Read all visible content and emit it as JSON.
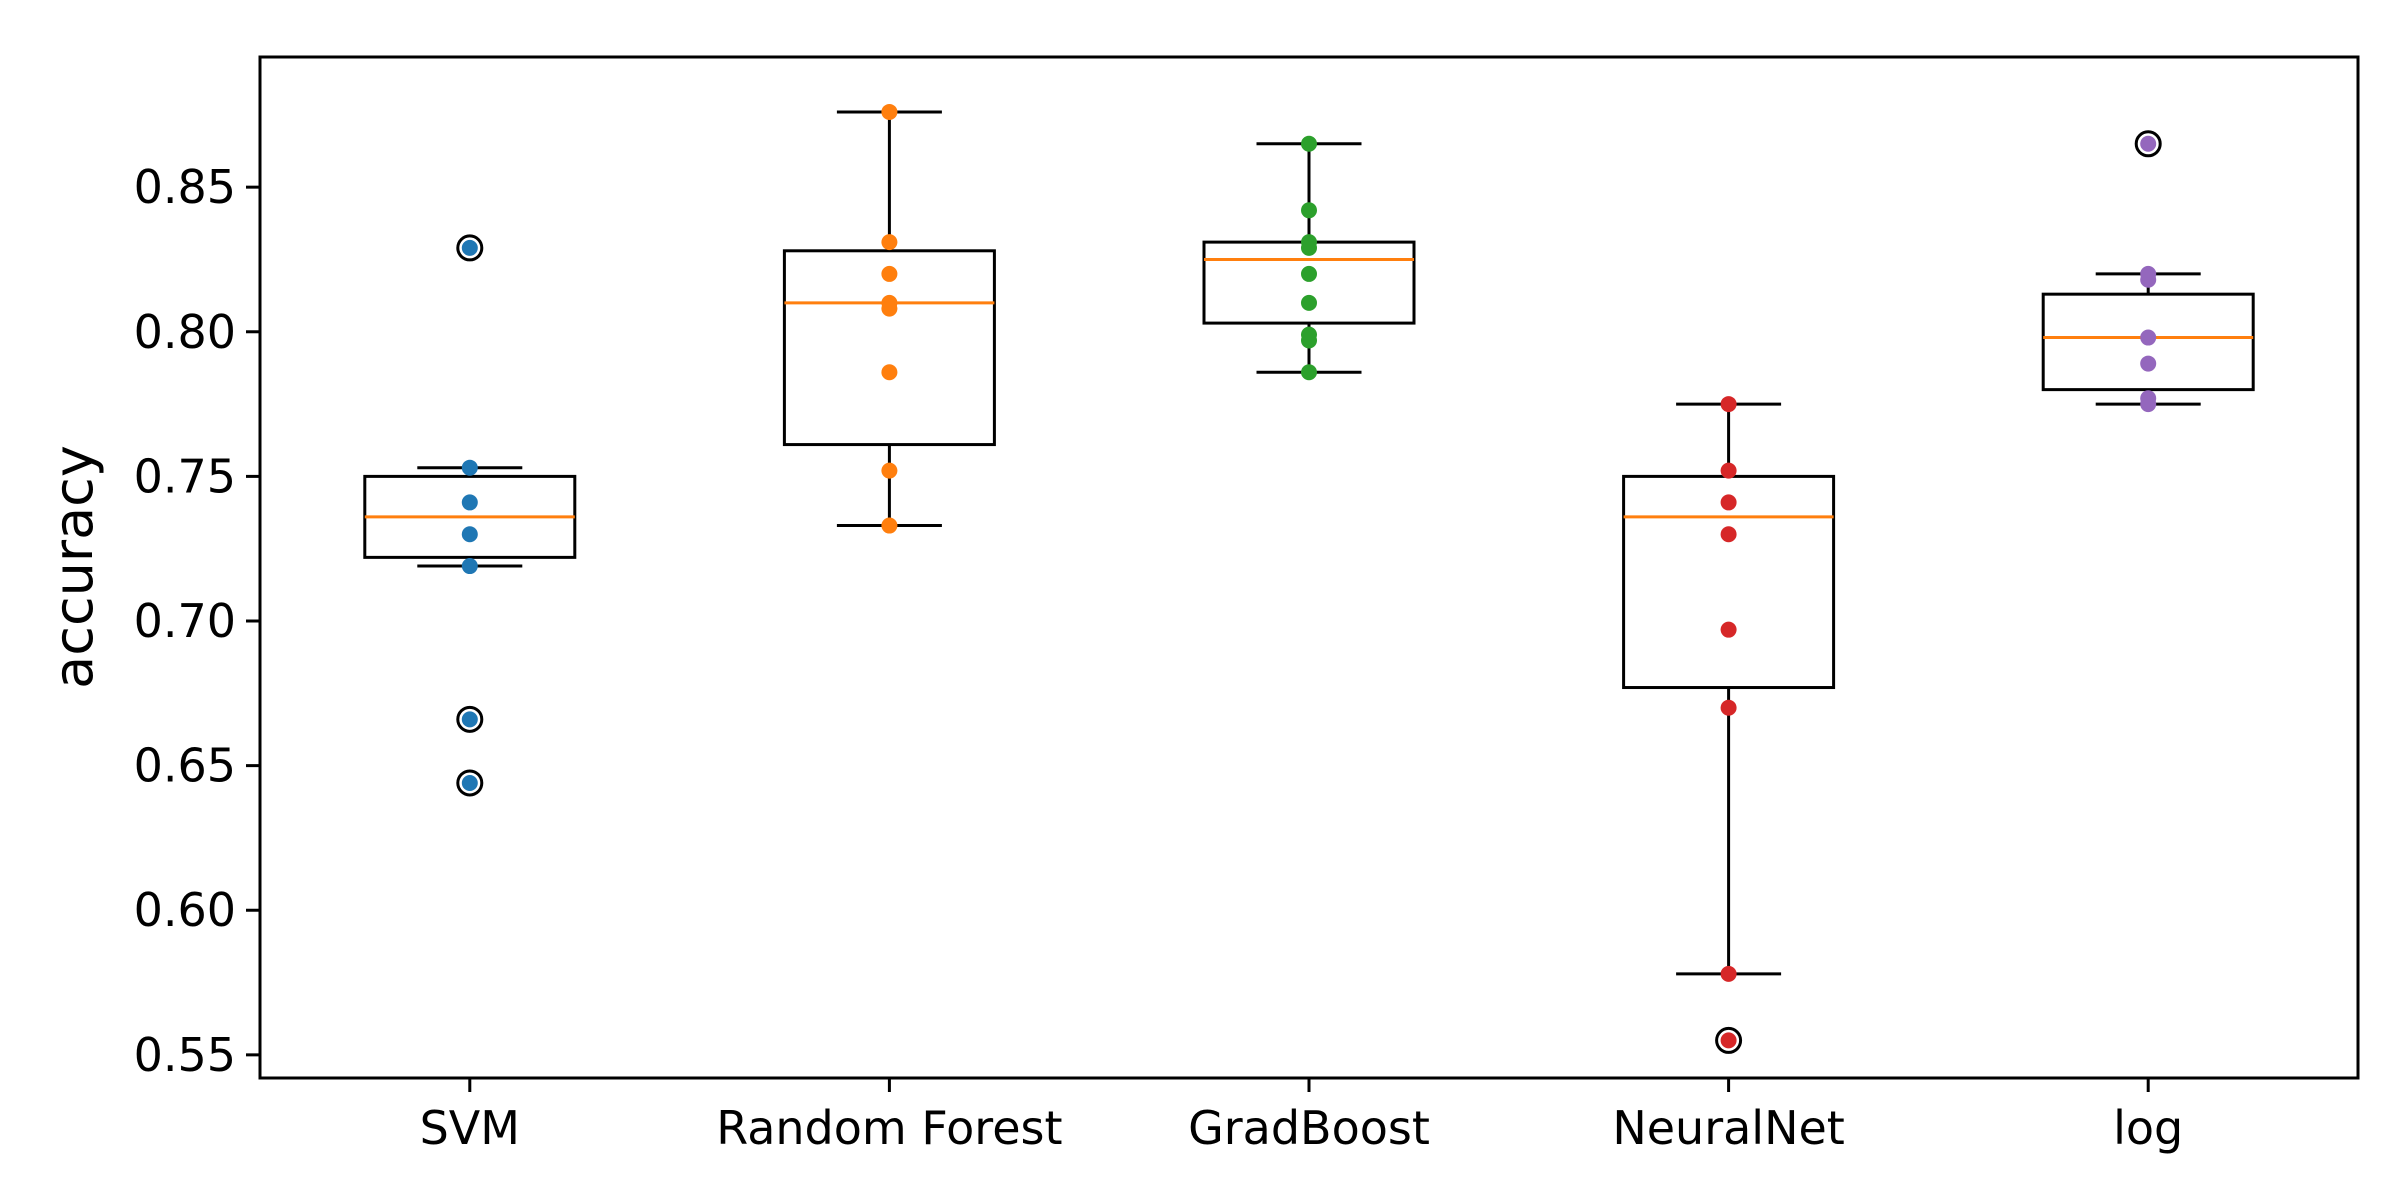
{
  "chart_data": {
    "type": "box",
    "title": "",
    "xlabel": "",
    "ylabel": "accuracy",
    "ylim": [
      0.542,
      0.895
    ],
    "yticks": [
      0.55,
      0.6,
      0.65,
      0.7,
      0.75,
      0.8,
      0.85
    ],
    "ytick_labels": [
      "0.55",
      "0.60",
      "0.65",
      "0.70",
      "0.75",
      "0.80",
      "0.85"
    ],
    "grid": false,
    "categories": [
      "SVM",
      "Random Forest",
      "GradBoost",
      "NeuralNet",
      "log"
    ],
    "series": [
      {
        "color": "#1f77b4",
        "whisker_low": 0.719,
        "q1": 0.722,
        "median": 0.736,
        "q3": 0.75,
        "whisker_high": 0.753,
        "outliers": [
          0.829,
          0.666,
          0.644
        ],
        "points": [
          0.829,
          0.753,
          0.741,
          0.73,
          0.719,
          0.666,
          0.644
        ]
      },
      {
        "color": "#ff7f0e",
        "whisker_low": 0.733,
        "q1": 0.761,
        "median": 0.81,
        "q3": 0.828,
        "whisker_high": 0.876,
        "outliers": [],
        "points": [
          0.876,
          0.831,
          0.82,
          0.81,
          0.808,
          0.786,
          0.752,
          0.733
        ]
      },
      {
        "color": "#2ca02c",
        "whisker_low": 0.786,
        "q1": 0.803,
        "median": 0.825,
        "q3": 0.831,
        "whisker_high": 0.865,
        "outliers": [],
        "points": [
          0.865,
          0.842,
          0.831,
          0.829,
          0.82,
          0.81,
          0.799,
          0.797,
          0.786
        ]
      },
      {
        "color": "#d62728",
        "whisker_low": 0.578,
        "q1": 0.677,
        "median": 0.736,
        "q3": 0.75,
        "whisker_high": 0.775,
        "outliers": [
          0.555
        ],
        "points": [
          0.775,
          0.752,
          0.741,
          0.73,
          0.697,
          0.67,
          0.578,
          0.555
        ]
      },
      {
        "color": "#9467bd",
        "whisker_low": 0.775,
        "q1": 0.78,
        "median": 0.798,
        "q3": 0.813,
        "whisker_high": 0.82,
        "outliers": [
          0.865
        ],
        "points": [
          0.865,
          0.82,
          0.818,
          0.798,
          0.789,
          0.777,
          0.775
        ]
      }
    ],
    "median_color": "#ff7f0e"
  }
}
